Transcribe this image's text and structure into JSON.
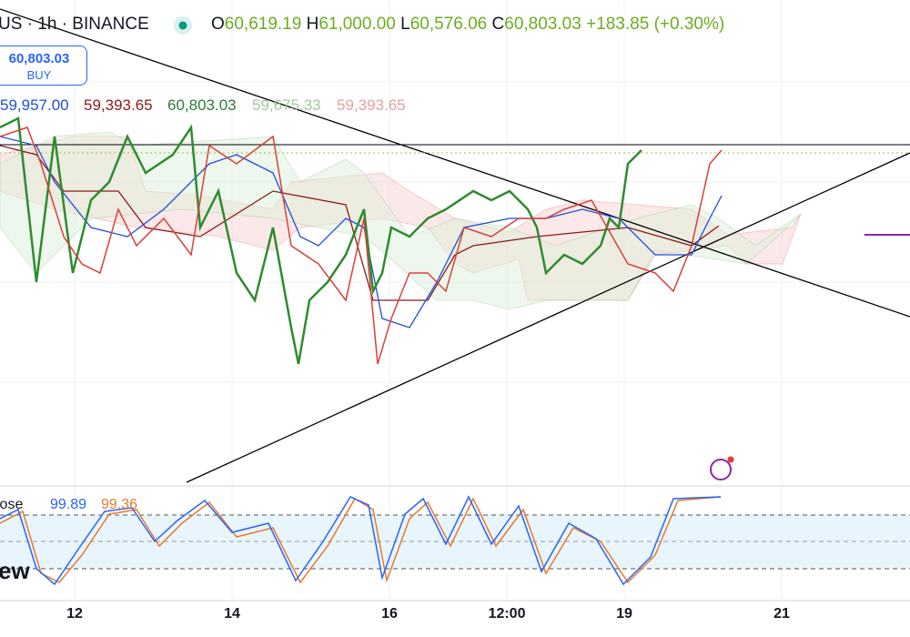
{
  "header": {
    "symbol": "US · 1h · BINANCE",
    "o_label": "O",
    "o": "60,619.19",
    "h_label": "H",
    "h": "61,000.00",
    "l_label": "L",
    "l": "60,576.06",
    "c_label": "C",
    "c": "60,803.03",
    "change": "+183.85 (+0.30%)"
  },
  "buy_button": {
    "price": "60,803.03",
    "label": "BUY"
  },
  "indicators": [
    "59,957.00",
    "59,393.65",
    "60,803.03",
    "59,675.33",
    "59,393.65"
  ],
  "oscillator": {
    "name": "lose",
    "k": "99.89",
    "d": "99.36"
  },
  "watermark": "ew",
  "x_axis": [
    "12",
    "14",
    "16",
    "12:00",
    "19",
    "21"
  ]
}
